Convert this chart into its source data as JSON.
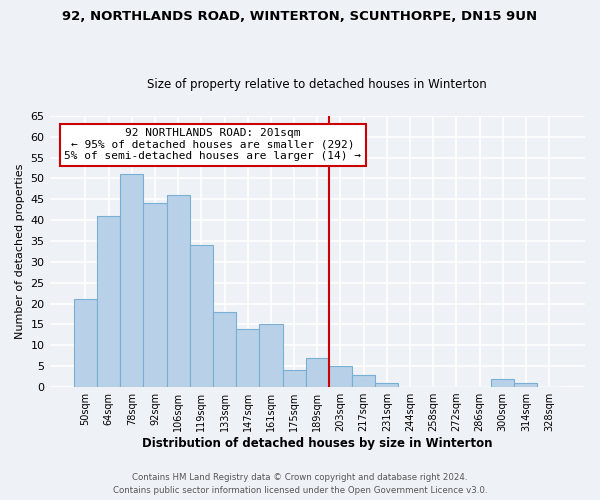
{
  "title1": "92, NORTHLANDS ROAD, WINTERTON, SCUNTHORPE, DN15 9UN",
  "title2": "Size of property relative to detached houses in Winterton",
  "xlabel": "Distribution of detached houses by size in Winterton",
  "ylabel": "Number of detached properties",
  "bin_labels": [
    "50sqm",
    "64sqm",
    "78sqm",
    "92sqm",
    "106sqm",
    "119sqm",
    "133sqm",
    "147sqm",
    "161sqm",
    "175sqm",
    "189sqm",
    "203sqm",
    "217sqm",
    "231sqm",
    "244sqm",
    "258sqm",
    "272sqm",
    "286sqm",
    "300sqm",
    "314sqm",
    "328sqm"
  ],
  "bar_heights": [
    21,
    41,
    51,
    44,
    46,
    34,
    18,
    14,
    15,
    4,
    7,
    5,
    3,
    1,
    0,
    0,
    0,
    0,
    2,
    1,
    0
  ],
  "bar_color": "#b8d0e8",
  "bar_edge_color": "#7aafd4",
  "vline_color": "#cc0000",
  "annotation_title": "92 NORTHLANDS ROAD: 201sqm",
  "annotation_line1": "← 95% of detached houses are smaller (292)",
  "annotation_line2": "5% of semi-detached houses are larger (14) →",
  "annotation_box_color": "#ffffff",
  "annotation_box_edge": "#cc0000",
  "ylim": [
    0,
    65
  ],
  "yticks": [
    0,
    5,
    10,
    15,
    20,
    25,
    30,
    35,
    40,
    45,
    50,
    55,
    60,
    65
  ],
  "footer1": "Contains HM Land Registry data © Crown copyright and database right 2024.",
  "footer2": "Contains public sector information licensed under the Open Government Licence v3.0.",
  "background_color": "#eef2f7",
  "grid_color": "#ffffff"
}
